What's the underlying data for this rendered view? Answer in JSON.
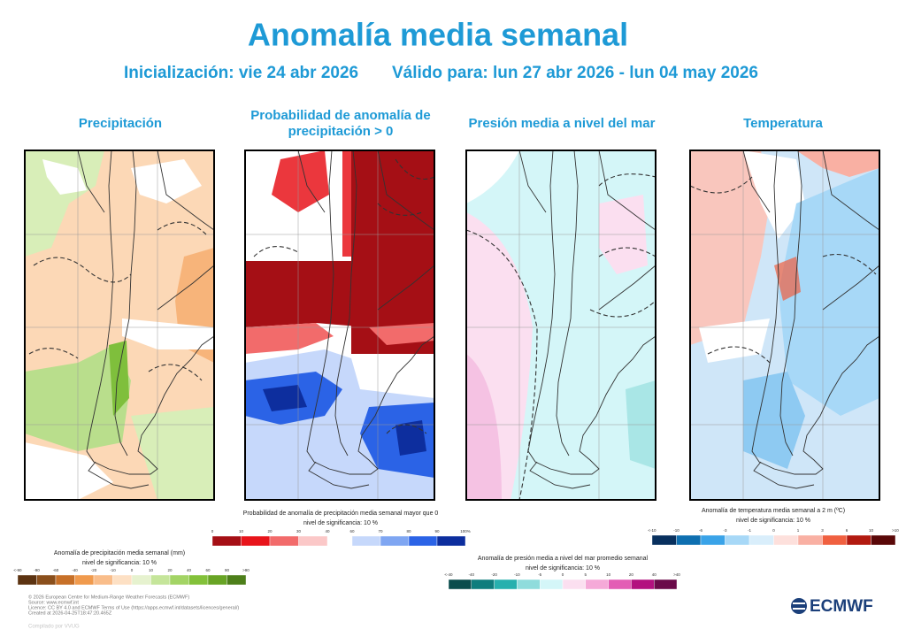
{
  "header": {
    "title": "Anomalía media semanal",
    "init": "Inicialización: vie 24 abr 2026",
    "valid": "Válido para: lun 27 abr 2026 - lun 04 may 2026"
  },
  "panels": [
    {
      "title": "Precipitación"
    },
    {
      "title": [
        "Probabilidad de anomalía de",
        "precipitación > 0"
      ]
    },
    {
      "title": "Presión media a nivel del mar"
    },
    {
      "title": "Temperatura"
    }
  ],
  "legends": [
    {
      "title": "Anomalía de precipitación media semanal (mm)",
      "subtitle": "nivel de significancia: 10 %",
      "groups": [
        {
          "labels": [
            "<-90",
            "-90",
            "-60",
            "-40",
            "-20",
            "-10",
            "0",
            "10",
            "20",
            "40",
            "60",
            "90",
            ">90"
          ],
          "colors": [
            "#5c3311",
            "#8a4f1c",
            "#c77028",
            "#f09a4d",
            "#f9bd8a",
            "#fde0c4",
            "#e6f2cf",
            "#c5e59a",
            "#a3d465",
            "#83c13a",
            "#68a425",
            "#4d7f1a"
          ]
        }
      ]
    },
    {
      "title": "Probabilidad de anomalía de precipitación media semanal mayor que 0",
      "subtitle": "nivel de significancia: 10 %",
      "groups": [
        {
          "labels": [
            "0",
            "10",
            "20",
            "30",
            "40"
          ],
          "colors": [
            "#a50f15",
            "#e8141b",
            "#f26b6b",
            "#fbc8c8"
          ]
        },
        {
          "labels": [
            "60",
            "70",
            "80",
            "90",
            "100%"
          ],
          "colors": [
            "#c6d8fb",
            "#7fa6f2",
            "#2b63e6",
            "#0d2e9e"
          ]
        }
      ]
    },
    {
      "title": "Anomalía de presión media a nivel del mar promedio semanal",
      "subtitle": "nivel de significancia: 10 %",
      "groups": [
        {
          "labels": [
            "<-40",
            "-40",
            "-20",
            "-10",
            "-5",
            "0",
            "5",
            "10",
            "20",
            "40",
            ">40"
          ],
          "colors": [
            "#0a4d4d",
            "#0f7d7d",
            "#27b0ae",
            "#8fdcdc",
            "#d4f6f8",
            "#fbdff0",
            "#f5a9d8",
            "#e35db5",
            "#b3117f",
            "#6b0a4a"
          ]
        }
      ]
    },
    {
      "title": "Anomalía de temperatura media semanal a 2 m (ºC)",
      "subtitle": "nivel de significancia: 10 %",
      "groups": [
        {
          "labels": [
            "<-10",
            "-10",
            "-6",
            "-3",
            "-1",
            "0",
            "1",
            "3",
            "6",
            "10",
            ">10"
          ],
          "colors": [
            "#08305e",
            "#0e6fb0",
            "#3aa3e8",
            "#a7d8f7",
            "#d9eefb",
            "#fde0dc",
            "#f9b0a3",
            "#f06040",
            "#b21a10",
            "#5a0808"
          ]
        }
      ]
    }
  ],
  "footer": {
    "lines": [
      "© 2026 European Centre for Medium-Range Weather Forecasts (ECMWF)",
      "Source: www.ecmwf.int",
      "Licence: CC BY 4.0 and ECMWF Terms of Use (https://apps.ecmwf.int/datasets/licences/general/)",
      "Created at 2026-04-25T18:47:20.465Z"
    ],
    "compiled": "Compilado por VVUG",
    "logo": "ECMWF"
  }
}
